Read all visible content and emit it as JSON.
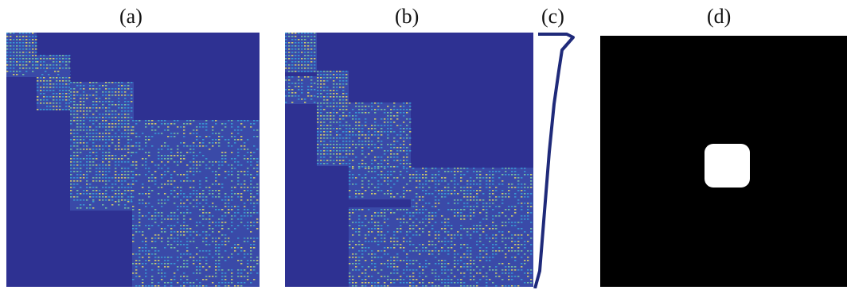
{
  "figure": {
    "panels": [
      {
        "id": "a",
        "label": "(a)",
        "kind": "matrix-heatmap"
      },
      {
        "id": "b",
        "label": "(b)",
        "kind": "matrix-heatmap"
      },
      {
        "id": "c",
        "label": "(c)",
        "kind": "line-profile"
      },
      {
        "id": "d",
        "label": "(d)",
        "kind": "binary-mask"
      }
    ]
  },
  "colors": {
    "background_blue": "#2e3192",
    "speckle_cyan": "#3aa6d8",
    "speckle_yellow": "#e8e060",
    "speckle_green": "#7fd0a0",
    "curve": "#1f2a7a",
    "mask_black": "#000000",
    "mask_white": "#ffffff"
  }
}
